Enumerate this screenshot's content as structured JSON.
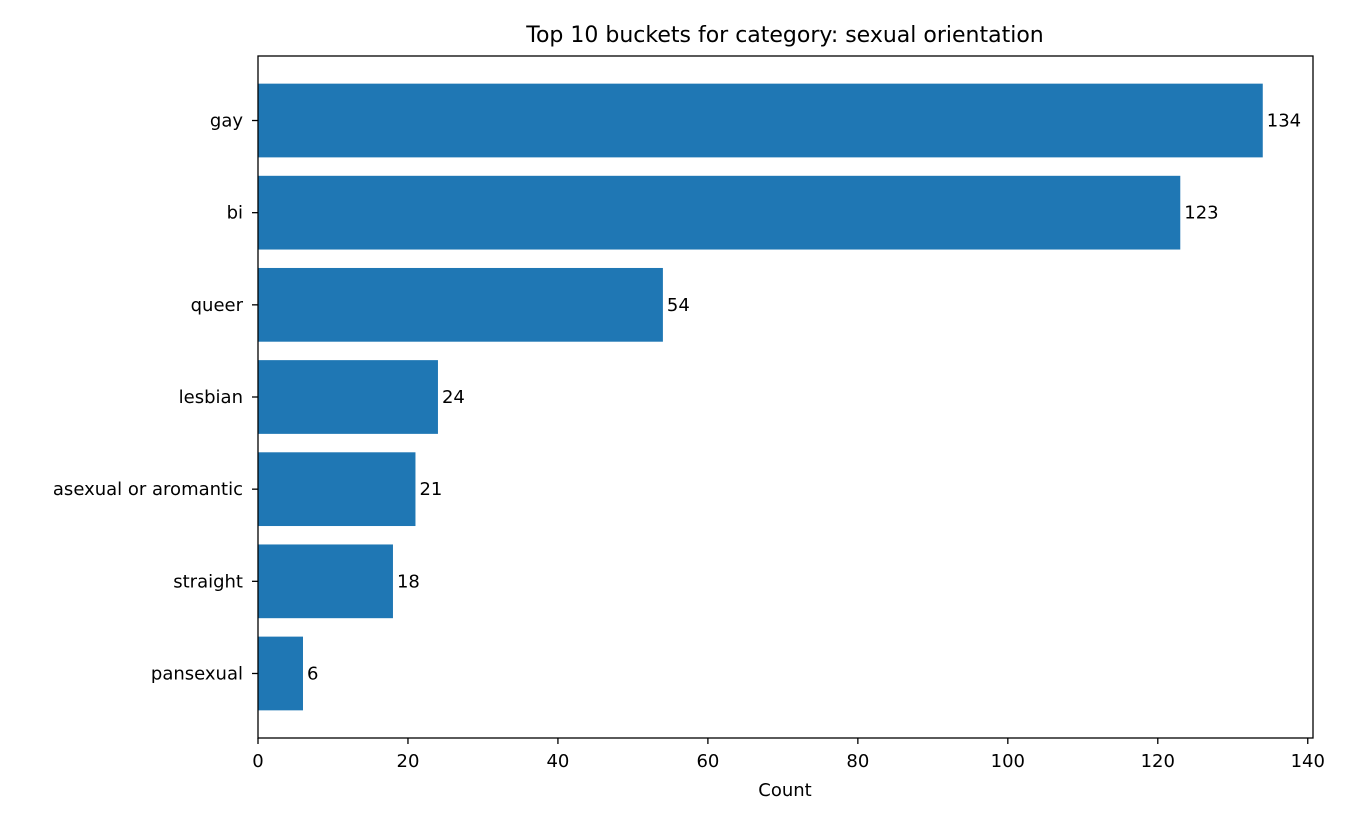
{
  "chart_data": {
    "type": "bar",
    "orientation": "horizontal",
    "title": "Top 10 buckets for category: sexual orientation",
    "xlabel": "Count",
    "ylabel": "",
    "categories": [
      "gay",
      "bi",
      "queer",
      "lesbian",
      "asexual or aromantic",
      "straight",
      "pansexual"
    ],
    "values": [
      134,
      123,
      54,
      24,
      21,
      18,
      6
    ],
    "xlim": [
      0,
      140.7
    ],
    "xticks": [
      0,
      20,
      40,
      60,
      80,
      100,
      120,
      140
    ],
    "grid": false,
    "bar_color": "#1f77b4",
    "data_labels": true
  }
}
